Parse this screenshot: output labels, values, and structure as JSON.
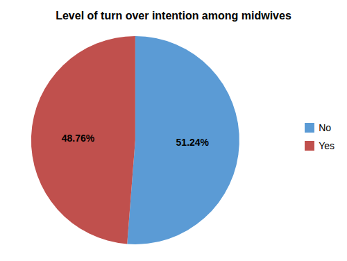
{
  "chart_data": {
    "type": "pie",
    "title": "Level of turn over intention among midwives",
    "categories": [
      "No",
      "Yes"
    ],
    "values": [
      51.24,
      48.76
    ],
    "value_labels": [
      "51.24%",
      "48.76%"
    ],
    "colors": [
      "#5B9BD5",
      "#C0504D"
    ],
    "data_labels": true,
    "legend": "right"
  }
}
